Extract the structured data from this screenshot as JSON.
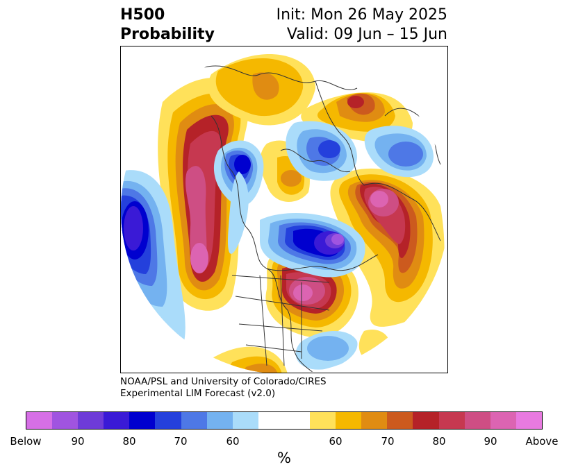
{
  "header": {
    "variable": "H500",
    "product": "Probability",
    "init": "Init: Mon 26 May 2025",
    "valid": "Valid: 09 Jun – 15 Jun"
  },
  "credit": {
    "line1": "NOAA/PSL and University of Colorado/CIRES",
    "line2": "Experimental LIM Forecast (v2.0)"
  },
  "colorbar": {
    "colors": [
      "#d66fe6",
      "#a054e0",
      "#6e3bd8",
      "#3a1ad6",
      "#0000cf",
      "#2440dc",
      "#4e78e6",
      "#74b2f0",
      "#aadcfa",
      "#ffffff",
      "#ffe15a",
      "#f5b800",
      "#e08c12",
      "#cc5a1e",
      "#b52228",
      "#c63850",
      "#ce4e84",
      "#dc64b2",
      "#e87ae0"
    ],
    "tick_labels": [
      "Below",
      "90",
      "80",
      "70",
      "60",
      "60",
      "70",
      "80",
      "90",
      "Above"
    ],
    "unit": "%"
  },
  "map": {
    "projection": "north-polar-stereographic",
    "features": [
      {
        "name": "below-anomaly-pacific",
        "category": "below",
        "peak": "Below"
      },
      {
        "name": "above-anomaly-west-north-america",
        "category": "above",
        "peak": "90"
      },
      {
        "name": "below-anomaly-alaska",
        "category": "below",
        "peak": "80"
      },
      {
        "name": "above-anomaly-siberia",
        "category": "above",
        "peak": "70"
      },
      {
        "name": "below-anomaly-arctic",
        "category": "below",
        "peak": "80"
      },
      {
        "name": "above-anomaly-scandinavia",
        "category": "above",
        "peak": "90"
      },
      {
        "name": "below-anomaly-hudson-bay",
        "category": "below",
        "peak": "Below"
      },
      {
        "name": "above-anomaly-north-atlantic",
        "category": "above",
        "peak": "90"
      },
      {
        "name": "below-anomaly-subtropical-atlantic",
        "category": "below",
        "peak": "60"
      }
    ]
  }
}
